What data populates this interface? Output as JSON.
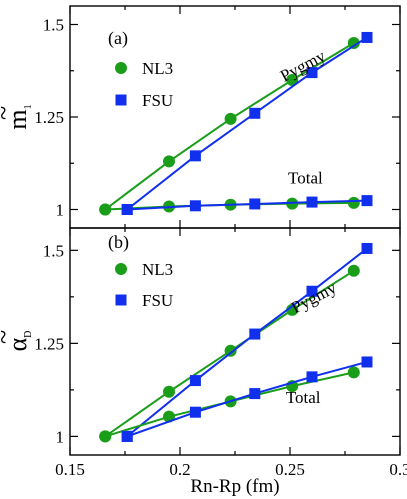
{
  "colors": {
    "nl3": "#1a9e1a",
    "fsu": "#1030ee"
  },
  "chart_data": [
    {
      "type": "line",
      "panel_label": "(a)",
      "ylabel_main": "m",
      "ylabel_sub": "1",
      "ylabel_accent": "~",
      "xlim": [
        0.15,
        0.3
      ],
      "ylim": [
        0.95,
        1.55
      ],
      "yticks": [
        1,
        1.25,
        1.5
      ],
      "ytick_labels": [
        "1",
        "1.25",
        "1.5"
      ],
      "legend": {
        "position": "upper-left",
        "entries": [
          "NL3",
          "FSU"
        ]
      },
      "annotations": [
        {
          "text": "Pygmy",
          "x": 0.257,
          "y": 1.375,
          "rotate": true
        },
        {
          "text": "Total",
          "x": 0.257,
          "y": 1.07,
          "rotate": false
        }
      ],
      "series": [
        {
          "name": "NL3",
          "group": "Pygmy",
          "marker": "circle",
          "color": "nl3",
          "x": [
            0.166,
            0.195,
            0.223,
            0.251,
            0.279
          ],
          "y": [
            1.0,
            1.13,
            1.245,
            1.35,
            1.45
          ]
        },
        {
          "name": "FSU",
          "group": "Pygmy",
          "marker": "square",
          "color": "fsu",
          "x": [
            0.176,
            0.207,
            0.234,
            0.26,
            0.285
          ],
          "y": [
            1.0,
            1.145,
            1.26,
            1.37,
            1.465
          ]
        },
        {
          "name": "NL3",
          "group": "Total",
          "marker": "circle",
          "color": "nl3",
          "x": [
            0.166,
            0.195,
            0.223,
            0.251,
            0.279
          ],
          "y": [
            1.0,
            1.008,
            1.013,
            1.016,
            1.018
          ]
        },
        {
          "name": "FSU",
          "group": "Total",
          "marker": "square",
          "color": "fsu",
          "x": [
            0.176,
            0.207,
            0.234,
            0.26,
            0.285
          ],
          "y": [
            1.0,
            1.01,
            1.015,
            1.02,
            1.024
          ]
        }
      ]
    },
    {
      "type": "line",
      "panel_label": "(b)",
      "ylabel_main": "α",
      "ylabel_sub": "D",
      "ylabel_accent": "~",
      "xlim": [
        0.15,
        0.3
      ],
      "xticks": [
        0.15,
        0.2,
        0.25,
        0.3
      ],
      "xtick_labels": [
        "0.15",
        "0.2",
        "0.25",
        "0.3"
      ],
      "xlabel": "Rn-Rp (fm)",
      "ylim": [
        0.95,
        1.56
      ],
      "yticks": [
        1,
        1.25,
        1.5
      ],
      "ytick_labels": [
        "1",
        "1.25",
        "1.5"
      ],
      "legend": {
        "position": "upper-left",
        "entries": [
          "NL3",
          "FSU"
        ]
      },
      "annotations": [
        {
          "text": "Pygmy",
          "x": 0.262,
          "y": 1.36,
          "rotate": true
        },
        {
          "text": "Total",
          "x": 0.256,
          "y": 1.09,
          "rotate": false
        }
      ],
      "series": [
        {
          "name": "NL3",
          "group": "Pygmy",
          "marker": "circle",
          "color": "nl3",
          "x": [
            0.166,
            0.195,
            0.223,
            0.251,
            0.279
          ],
          "y": [
            1.0,
            1.12,
            1.23,
            1.34,
            1.445
          ]
        },
        {
          "name": "FSU",
          "group": "Pygmy",
          "marker": "square",
          "color": "fsu",
          "x": [
            0.176,
            0.207,
            0.234,
            0.26,
            0.285
          ],
          "y": [
            1.0,
            1.15,
            1.275,
            1.39,
            1.505
          ]
        },
        {
          "name": "NL3",
          "group": "Total",
          "marker": "circle",
          "color": "nl3",
          "x": [
            0.166,
            0.195,
            0.223,
            0.251,
            0.279
          ],
          "y": [
            1.0,
            1.053,
            1.094,
            1.135,
            1.172
          ]
        },
        {
          "name": "FSU",
          "group": "Total",
          "marker": "square",
          "color": "fsu",
          "x": [
            0.176,
            0.207,
            0.234,
            0.26,
            0.285
          ],
          "y": [
            1.0,
            1.065,
            1.115,
            1.16,
            1.2
          ]
        }
      ]
    }
  ]
}
